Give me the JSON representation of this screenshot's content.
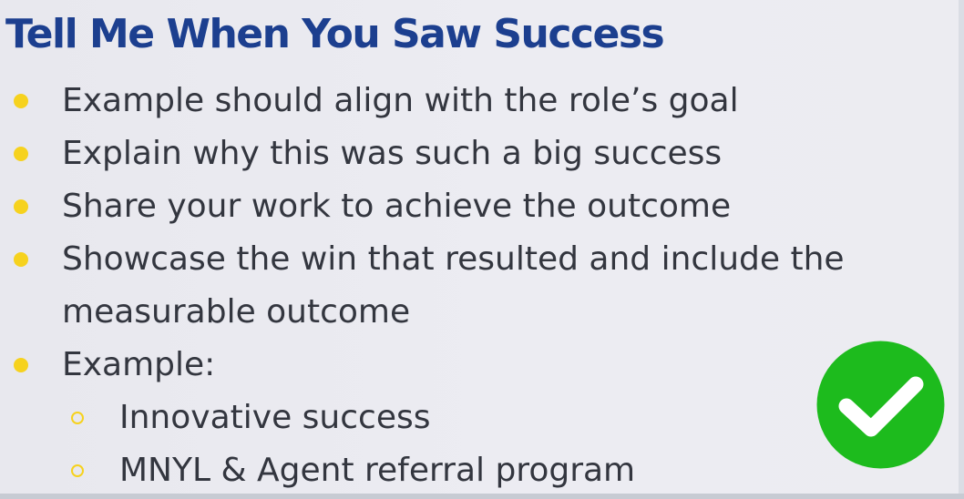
{
  "title": "Tell Me When You Saw Success",
  "bullets": [
    {
      "text": "Example should align with the role’s goal"
    },
    {
      "text": "Explain why this was such a big success"
    },
    {
      "text": "Share your work to achieve the outcome"
    },
    {
      "text_line1": "Showcase the win that resulted and include the",
      "text_line2": "measurable outcome"
    },
    {
      "text": "Example:"
    }
  ],
  "sub_bullets": [
    {
      "text": "Innovative success"
    },
    {
      "text": "MNYL & Agent referral program"
    }
  ],
  "icon": {
    "name": "check-circle-icon",
    "color": "#1dbb1d",
    "mark_color": "#ffffff"
  },
  "colors": {
    "title": "#1c3f8f",
    "bullet": "#f6d21e",
    "text": "#33363f",
    "background": "#e9e9ef"
  }
}
